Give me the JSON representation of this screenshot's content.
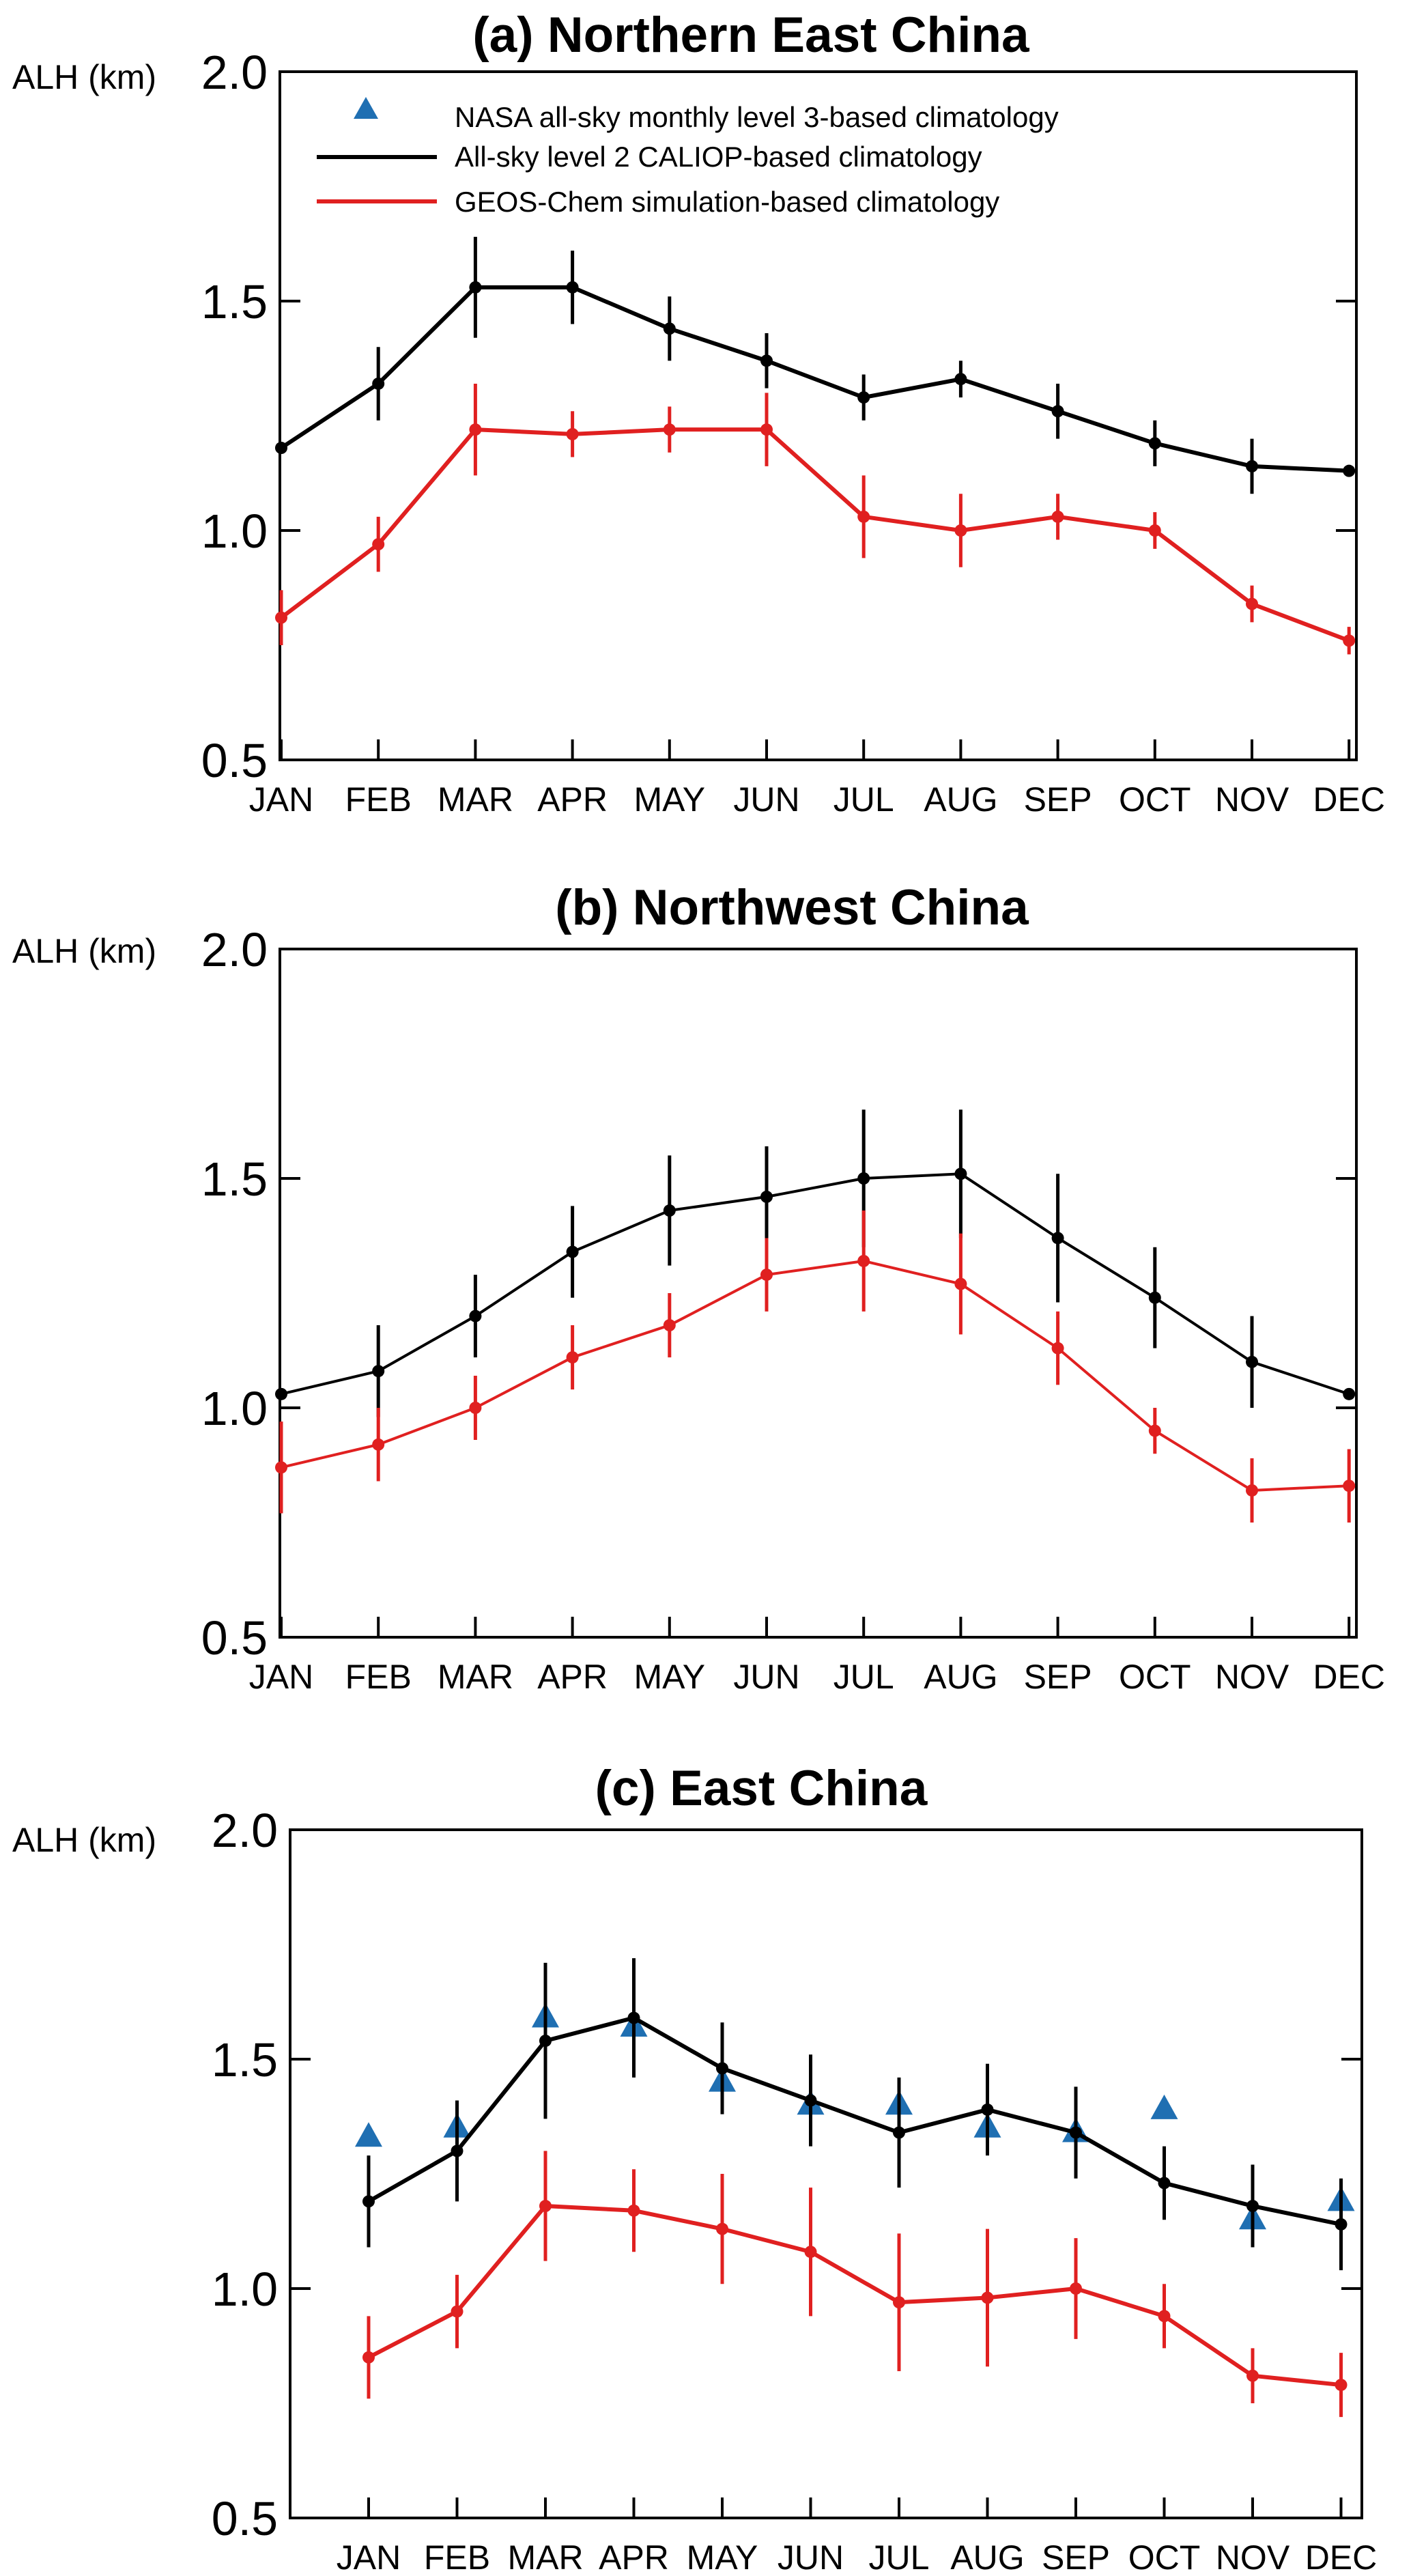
{
  "chart_data": [
    {
      "type": "line",
      "title": "(a) Northern East China",
      "ylabel": "ALH (km)",
      "xlabel": "",
      "ylim": [
        0.5,
        2.0
      ],
      "yticks": [
        "0.5",
        "1.0",
        "1.5",
        "2.0"
      ],
      "categories": [
        "JAN",
        "FEB",
        "MAR",
        "APR",
        "MAY",
        "JUN",
        "JUL",
        "AUG",
        "SEP",
        "OCT",
        "NOV",
        "DEC"
      ],
      "legend": {
        "position": "top-left",
        "entries": [
          {
            "label": "NASA all-sky monthly level 3-based climatology",
            "marker": "triangle",
            "color": "#1f6fb2"
          },
          {
            "label": "All-sky level 2 CALIOP-based climatology",
            "marker": "line",
            "color": "#000000"
          },
          {
            "label": "GEOS-Chem simulation-based climatology",
            "marker": "line",
            "color": "#e02020"
          }
        ]
      },
      "series": [
        {
          "name": "All-sky level 2 CALIOP-based climatology",
          "color": "#000000",
          "values": [
            1.18,
            1.32,
            1.53,
            1.53,
            1.44,
            1.37,
            1.29,
            1.33,
            1.26,
            1.19,
            1.14,
            1.13
          ],
          "errors": [
            0.0,
            0.08,
            0.11,
            0.08,
            0.07,
            0.06,
            0.05,
            0.04,
            0.06,
            0.05,
            0.06,
            0.0
          ]
        },
        {
          "name": "GEOS-Chem simulation-based climatology",
          "color": "#e02020",
          "values": [
            0.81,
            0.97,
            1.22,
            1.21,
            1.22,
            1.22,
            1.03,
            1.0,
            1.03,
            1.0,
            0.84,
            0.76
          ],
          "errors": [
            0.06,
            0.06,
            0.1,
            0.05,
            0.05,
            0.08,
            0.09,
            0.08,
            0.05,
            0.04,
            0.04,
            0.03
          ]
        }
      ]
    },
    {
      "type": "line",
      "title": "(b) Northwest China",
      "ylabel": "ALH (km)",
      "xlabel": "",
      "ylim": [
        0.5,
        2.0
      ],
      "yticks": [
        "0.5",
        "1.0",
        "1.5",
        "2.0"
      ],
      "categories": [
        "JAN",
        "FEB",
        "MAR",
        "APR",
        "MAY",
        "JUN",
        "JUL",
        "AUG",
        "SEP",
        "OCT",
        "NOV",
        "DEC"
      ],
      "series": [
        {
          "name": "All-sky level 2 CALIOP-based climatology",
          "color": "#000000",
          "values": [
            1.03,
            1.08,
            1.2,
            1.34,
            1.43,
            1.46,
            1.5,
            1.51,
            1.37,
            1.24,
            1.1,
            1.03
          ],
          "errors": [
            0.0,
            0.1,
            0.09,
            0.1,
            0.12,
            0.11,
            0.15,
            0.14,
            0.14,
            0.11,
            0.1,
            0.0
          ]
        },
        {
          "name": "GEOS-Chem simulation-based climatology",
          "color": "#e02020",
          "values": [
            0.87,
            0.92,
            1.0,
            1.11,
            1.18,
            1.29,
            1.32,
            1.27,
            1.13,
            0.95,
            0.82,
            0.83
          ],
          "errors": [
            0.1,
            0.08,
            0.07,
            0.07,
            0.07,
            0.08,
            0.11,
            0.11,
            0.08,
            0.05,
            0.07,
            0.08
          ]
        }
      ]
    },
    {
      "type": "line",
      "title": "(c) East China",
      "ylabel": "ALH (km)",
      "xlabel": "",
      "ylim": [
        0.5,
        2.0
      ],
      "yticks": [
        "0.5",
        "1.0",
        "1.5",
        "2.0"
      ],
      "categories": [
        "JAN",
        "FEB",
        "MAR",
        "APR",
        "MAY",
        "JUN",
        "JUL",
        "AUG",
        "SEP",
        "OCT",
        "NOV",
        "DEC"
      ],
      "series": [
        {
          "name": "NASA all-sky monthly level 3-based climatology",
          "color": "#1f6fb2",
          "marker": "triangle",
          "values": [
            1.33,
            1.35,
            1.59,
            1.57,
            1.45,
            1.4,
            1.4,
            1.35,
            1.34,
            1.39,
            1.15,
            1.19
          ]
        },
        {
          "name": "All-sky level 2 CALIOP-based climatology",
          "color": "#000000",
          "values": [
            1.19,
            1.3,
            1.54,
            1.59,
            1.48,
            1.41,
            1.34,
            1.39,
            1.34,
            1.23,
            1.18,
            1.14
          ],
          "errors": [
            0.1,
            0.11,
            0.17,
            0.13,
            0.1,
            0.1,
            0.12,
            0.1,
            0.1,
            0.08,
            0.09,
            0.1
          ]
        },
        {
          "name": "GEOS-Chem simulation-based climatology",
          "color": "#e02020",
          "values": [
            0.85,
            0.95,
            1.18,
            1.17,
            1.13,
            1.08,
            0.97,
            0.98,
            1.0,
            0.94,
            0.81,
            0.79
          ],
          "errors": [
            0.09,
            0.08,
            0.12,
            0.09,
            0.12,
            0.14,
            0.15,
            0.15,
            0.11,
            0.07,
            0.06,
            0.07
          ]
        }
      ]
    }
  ]
}
